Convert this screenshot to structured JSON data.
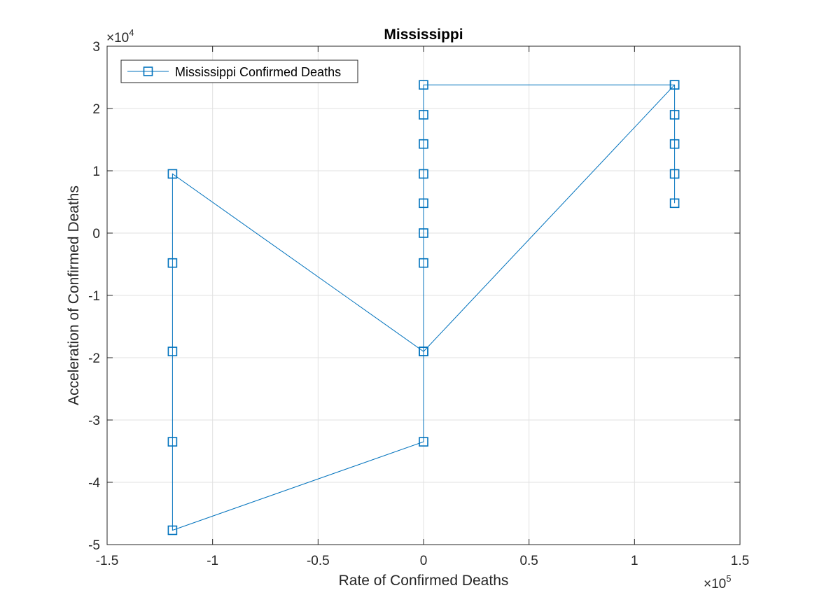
{
  "chart_data": {
    "type": "line",
    "title": "Mississippi",
    "xlabel": "Rate of Confirmed Deaths",
    "ylabel": "Acceleration of Confirmed Deaths",
    "xlim": [
      -1.5,
      1.5
    ],
    "ylim": [
      -5,
      3
    ],
    "x_multiplier_label": {
      "base": "×10",
      "exponent": "5"
    },
    "y_multiplier_label": {
      "base": "×10",
      "exponent": "4"
    },
    "x_ticks": [
      {
        "value": -1.5,
        "label": "-1.5"
      },
      {
        "value": -1,
        "label": "-1"
      },
      {
        "value": -0.5,
        "label": "-0.5"
      },
      {
        "value": 0,
        "label": "0"
      },
      {
        "value": 0.5,
        "label": "0.5"
      },
      {
        "value": 1,
        "label": "1"
      },
      {
        "value": 1.5,
        "label": "1.5"
      }
    ],
    "y_ticks": [
      {
        "value": 3,
        "label": "3"
      },
      {
        "value": 2,
        "label": "2"
      },
      {
        "value": 1,
        "label": "1"
      },
      {
        "value": 0,
        "label": "0"
      },
      {
        "value": -1,
        "label": "-1"
      },
      {
        "value": -2,
        "label": "-2"
      },
      {
        "value": -3,
        "label": "-3"
      },
      {
        "value": -4,
        "label": "-4"
      },
      {
        "value": -5,
        "label": "-5"
      }
    ],
    "grid": true,
    "legend_position": "top-left",
    "series": [
      {
        "name": "Mississippi Confirmed Deaths",
        "color": "#0072BD",
        "marker": "square",
        "x": [
          1.19,
          1.19,
          1.19,
          1.19,
          1.19,
          0,
          0,
          0,
          0,
          0,
          0,
          0,
          0,
          -1.19,
          -1.19,
          -1.19,
          -1.19,
          -1.19,
          0,
          0,
          1.19
        ],
        "y": [
          0.48,
          0.95,
          1.43,
          1.9,
          2.38,
          2.38,
          1.9,
          1.43,
          0.95,
          0.48,
          0,
          -0.48,
          -1.9,
          0.95,
          -0.48,
          -1.9,
          -3.35,
          -4.77,
          -3.35,
          -1.9,
          2.38
        ]
      }
    ]
  }
}
